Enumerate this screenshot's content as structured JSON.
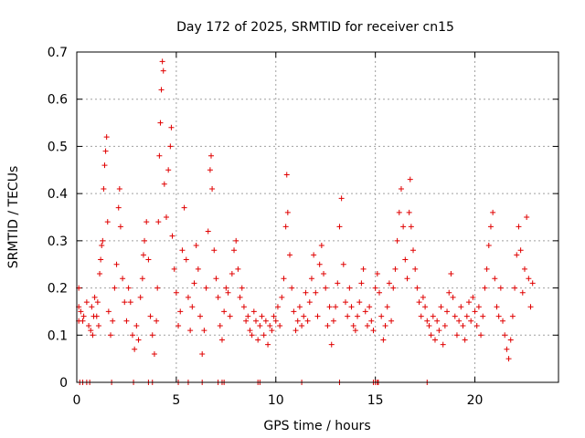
{
  "chart_data": {
    "type": "scatter",
    "title": "Day 172 of 2025, SRMTID for receiver cn15",
    "xlabel": "GPS time / hours",
    "ylabel": "SRMTID / TECUs",
    "xlim": [
      0,
      24.2
    ],
    "ylim": [
      0,
      0.7
    ],
    "xticks": [
      "0",
      "5",
      "10",
      "15",
      "20"
    ],
    "yticks": [
      "0",
      "0.1",
      "0.2",
      "0.3",
      "0.4",
      "0.5",
      "0.6",
      "0.7"
    ],
    "grid": true,
    "marker": "plus",
    "series": [
      {
        "name": "SRMTID",
        "color": "#e00000",
        "points": [
          [
            0.1,
            0.13
          ],
          [
            0.1,
            0.16
          ],
          [
            0.1,
            0.2
          ],
          [
            0.2,
            0.15
          ],
          [
            0.3,
            0.13
          ],
          [
            0.35,
            0.14
          ],
          [
            0.5,
            0.17
          ],
          [
            0.6,
            0.12
          ],
          [
            0.7,
            0.11
          ],
          [
            0.75,
            0.16
          ],
          [
            0.8,
            0.1
          ],
          [
            0.85,
            0.14
          ],
          [
            0.9,
            0.18
          ],
          [
            1.0,
            0.14
          ],
          [
            1.05,
            0.17
          ],
          [
            1.1,
            0.12
          ],
          [
            1.15,
            0.23
          ],
          [
            1.2,
            0.26
          ],
          [
            1.25,
            0.29
          ],
          [
            1.3,
            0.3
          ],
          [
            1.35,
            0.41
          ],
          [
            1.4,
            0.46
          ],
          [
            1.45,
            0.49
          ],
          [
            1.5,
            0.52
          ],
          [
            1.55,
            0.34
          ],
          [
            1.6,
            0.15
          ],
          [
            1.7,
            0.1
          ],
          [
            1.8,
            0.13
          ],
          [
            1.9,
            0.2
          ],
          [
            2.0,
            0.25
          ],
          [
            2.1,
            0.37
          ],
          [
            2.15,
            0.41
          ],
          [
            2.2,
            0.33
          ],
          [
            2.3,
            0.22
          ],
          [
            2.4,
            0.17
          ],
          [
            2.5,
            0.13
          ],
          [
            2.6,
            0.2
          ],
          [
            2.7,
            0.17
          ],
          [
            2.8,
            0.1
          ],
          [
            2.9,
            0.07
          ],
          [
            3.0,
            0.12
          ],
          [
            3.1,
            0.09
          ],
          [
            3.2,
            0.18
          ],
          [
            3.3,
            0.22
          ],
          [
            3.35,
            0.27
          ],
          [
            3.4,
            0.3
          ],
          [
            3.5,
            0.34
          ],
          [
            3.6,
            0.26
          ],
          [
            3.7,
            0.14
          ],
          [
            3.8,
            0.1
          ],
          [
            3.9,
            0.06
          ],
          [
            4.0,
            0.13
          ],
          [
            4.05,
            0.2
          ],
          [
            4.1,
            0.34
          ],
          [
            4.15,
            0.48
          ],
          [
            4.2,
            0.55
          ],
          [
            4.25,
            0.62
          ],
          [
            4.3,
            0.68
          ],
          [
            4.35,
            0.66
          ],
          [
            4.4,
            0.42
          ],
          [
            4.5,
            0.35
          ],
          [
            4.6,
            0.45
          ],
          [
            4.7,
            0.5
          ],
          [
            4.75,
            0.54
          ],
          [
            4.8,
            0.31
          ],
          [
            4.9,
            0.24
          ],
          [
            5.0,
            0.19
          ],
          [
            5.1,
            0.12
          ],
          [
            5.2,
            0.15
          ],
          [
            5.3,
            0.28
          ],
          [
            5.4,
            0.37
          ],
          [
            5.5,
            0.26
          ],
          [
            5.6,
            0.18
          ],
          [
            5.7,
            0.11
          ],
          [
            5.8,
            0.16
          ],
          [
            5.9,
            0.21
          ],
          [
            6.0,
            0.29
          ],
          [
            6.1,
            0.24
          ],
          [
            6.2,
            0.14
          ],
          [
            6.3,
            0.06
          ],
          [
            6.4,
            0.11
          ],
          [
            6.5,
            0.2
          ],
          [
            6.6,
            0.32
          ],
          [
            6.7,
            0.45
          ],
          [
            6.75,
            0.48
          ],
          [
            6.8,
            0.41
          ],
          [
            6.9,
            0.28
          ],
          [
            7.0,
            0.22
          ],
          [
            7.1,
            0.18
          ],
          [
            7.2,
            0.12
          ],
          [
            7.3,
            0.09
          ],
          [
            7.4,
            0.15
          ],
          [
            7.5,
            0.2
          ],
          [
            7.6,
            0.19
          ],
          [
            7.7,
            0.14
          ],
          [
            7.8,
            0.23
          ],
          [
            7.9,
            0.28
          ],
          [
            8.0,
            0.3
          ],
          [
            8.1,
            0.24
          ],
          [
            8.2,
            0.18
          ],
          [
            8.3,
            0.2
          ],
          [
            8.4,
            0.16
          ],
          [
            8.5,
            0.13
          ],
          [
            8.6,
            0.14
          ],
          [
            8.7,
            0.11
          ],
          [
            8.8,
            0.1
          ],
          [
            8.9,
            0.15
          ],
          [
            9.0,
            0.13
          ],
          [
            9.1,
            0.09
          ],
          [
            9.2,
            0.12
          ],
          [
            9.3,
            0.14
          ],
          [
            9.4,
            0.1
          ],
          [
            9.5,
            0.13
          ],
          [
            9.6,
            0.08
          ],
          [
            9.7,
            0.12
          ],
          [
            9.8,
            0.11
          ],
          [
            9.9,
            0.14
          ],
          [
            10.0,
            0.13
          ],
          [
            10.1,
            0.16
          ],
          [
            10.2,
            0.12
          ],
          [
            10.3,
            0.18
          ],
          [
            10.4,
            0.22
          ],
          [
            10.5,
            0.33
          ],
          [
            10.55,
            0.44
          ],
          [
            10.6,
            0.36
          ],
          [
            10.7,
            0.27
          ],
          [
            10.8,
            0.2
          ],
          [
            10.9,
            0.15
          ],
          [
            11.0,
            0.11
          ],
          [
            11.1,
            0.13
          ],
          [
            11.2,
            0.16
          ],
          [
            11.3,
            0.12
          ],
          [
            11.4,
            0.14
          ],
          [
            11.5,
            0.19
          ],
          [
            11.6,
            0.13
          ],
          [
            11.7,
            0.17
          ],
          [
            11.8,
            0.22
          ],
          [
            11.9,
            0.27
          ],
          [
            12.0,
            0.19
          ],
          [
            12.1,
            0.14
          ],
          [
            12.2,
            0.25
          ],
          [
            12.3,
            0.29
          ],
          [
            12.4,
            0.23
          ],
          [
            12.5,
            0.2
          ],
          [
            12.6,
            0.12
          ],
          [
            12.7,
            0.16
          ],
          [
            12.8,
            0.08
          ],
          [
            12.9,
            0.13
          ],
          [
            13.0,
            0.16
          ],
          [
            13.1,
            0.21
          ],
          [
            13.2,
            0.33
          ],
          [
            13.3,
            0.39
          ],
          [
            13.4,
            0.25
          ],
          [
            13.5,
            0.17
          ],
          [
            13.6,
            0.14
          ],
          [
            13.7,
            0.2
          ],
          [
            13.8,
            0.16
          ],
          [
            13.9,
            0.12
          ],
          [
            14.0,
            0.11
          ],
          [
            14.1,
            0.14
          ],
          [
            14.2,
            0.17
          ],
          [
            14.3,
            0.21
          ],
          [
            14.4,
            0.24
          ],
          [
            14.5,
            0.15
          ],
          [
            14.6,
            0.12
          ],
          [
            14.7,
            0.16
          ],
          [
            14.8,
            0.13
          ],
          [
            14.9,
            0.11
          ],
          [
            15.0,
            0.2
          ],
          [
            15.1,
            0.23
          ],
          [
            15.2,
            0.19
          ],
          [
            15.3,
            0.14
          ],
          [
            15.4,
            0.09
          ],
          [
            15.5,
            0.12
          ],
          [
            15.6,
            0.16
          ],
          [
            15.7,
            0.21
          ],
          [
            15.8,
            0.13
          ],
          [
            15.9,
            0.2
          ],
          [
            16.0,
            0.24
          ],
          [
            16.1,
            0.3
          ],
          [
            16.2,
            0.36
          ],
          [
            16.3,
            0.41
          ],
          [
            16.4,
            0.33
          ],
          [
            16.5,
            0.26
          ],
          [
            16.6,
            0.22
          ],
          [
            16.7,
            0.36
          ],
          [
            16.75,
            0.43
          ],
          [
            16.8,
            0.33
          ],
          [
            16.9,
            0.28
          ],
          [
            17.0,
            0.24
          ],
          [
            17.1,
            0.2
          ],
          [
            17.2,
            0.17
          ],
          [
            17.3,
            0.14
          ],
          [
            17.4,
            0.18
          ],
          [
            17.5,
            0.16
          ],
          [
            17.6,
            0.13
          ],
          [
            17.7,
            0.12
          ],
          [
            17.8,
            0.1
          ],
          [
            17.9,
            0.14
          ],
          [
            18.0,
            0.09
          ],
          [
            18.1,
            0.13
          ],
          [
            18.2,
            0.11
          ],
          [
            18.3,
            0.16
          ],
          [
            18.4,
            0.08
          ],
          [
            18.5,
            0.12
          ],
          [
            18.6,
            0.15
          ],
          [
            18.7,
            0.19
          ],
          [
            18.8,
            0.23
          ],
          [
            18.9,
            0.18
          ],
          [
            19.0,
            0.14
          ],
          [
            19.1,
            0.1
          ],
          [
            19.2,
            0.13
          ],
          [
            19.3,
            0.16
          ],
          [
            19.4,
            0.12
          ],
          [
            19.5,
            0.09
          ],
          [
            19.6,
            0.14
          ],
          [
            19.7,
            0.17
          ],
          [
            19.8,
            0.13
          ],
          [
            19.9,
            0.18
          ],
          [
            20.0,
            0.15
          ],
          [
            20.1,
            0.12
          ],
          [
            20.2,
            0.16
          ],
          [
            20.3,
            0.1
          ],
          [
            20.4,
            0.14
          ],
          [
            20.5,
            0.2
          ],
          [
            20.6,
            0.24
          ],
          [
            20.7,
            0.29
          ],
          [
            20.8,
            0.33
          ],
          [
            20.9,
            0.36
          ],
          [
            21.0,
            0.22
          ],
          [
            21.1,
            0.16
          ],
          [
            21.2,
            0.14
          ],
          [
            21.3,
            0.2
          ],
          [
            21.4,
            0.13
          ],
          [
            21.5,
            0.1
          ],
          [
            21.6,
            0.07
          ],
          [
            21.7,
            0.05
          ],
          [
            21.8,
            0.09
          ],
          [
            21.9,
            0.14
          ],
          [
            22.0,
            0.2
          ],
          [
            22.1,
            0.27
          ],
          [
            22.2,
            0.33
          ],
          [
            22.3,
            0.28
          ],
          [
            22.4,
            0.19
          ],
          [
            22.5,
            0.24
          ],
          [
            22.6,
            0.35
          ],
          [
            22.7,
            0.22
          ],
          [
            22.8,
            0.16
          ],
          [
            22.9,
            0.21
          ]
        ]
      },
      {
        "name": "zero",
        "color": "#e00000",
        "points": [
          [
            0.15,
            0
          ],
          [
            0.3,
            0
          ],
          [
            0.5,
            0
          ],
          [
            0.65,
            0
          ],
          [
            1.75,
            0
          ],
          [
            2.85,
            0
          ],
          [
            3.6,
            0
          ],
          [
            3.8,
            0
          ],
          [
            5.1,
            0
          ],
          [
            5.6,
            0
          ],
          [
            6.3,
            0
          ],
          [
            7.1,
            0
          ],
          [
            7.3,
            0
          ],
          [
            7.4,
            0
          ],
          [
            9.1,
            0
          ],
          [
            9.2,
            0
          ],
          [
            11.3,
            0
          ],
          [
            13.2,
            0
          ],
          [
            14.9,
            0
          ],
          [
            15.0,
            0
          ],
          [
            15.1,
            0
          ],
          [
            15.15,
            0
          ],
          [
            17.6,
            0
          ]
        ]
      }
    ]
  }
}
